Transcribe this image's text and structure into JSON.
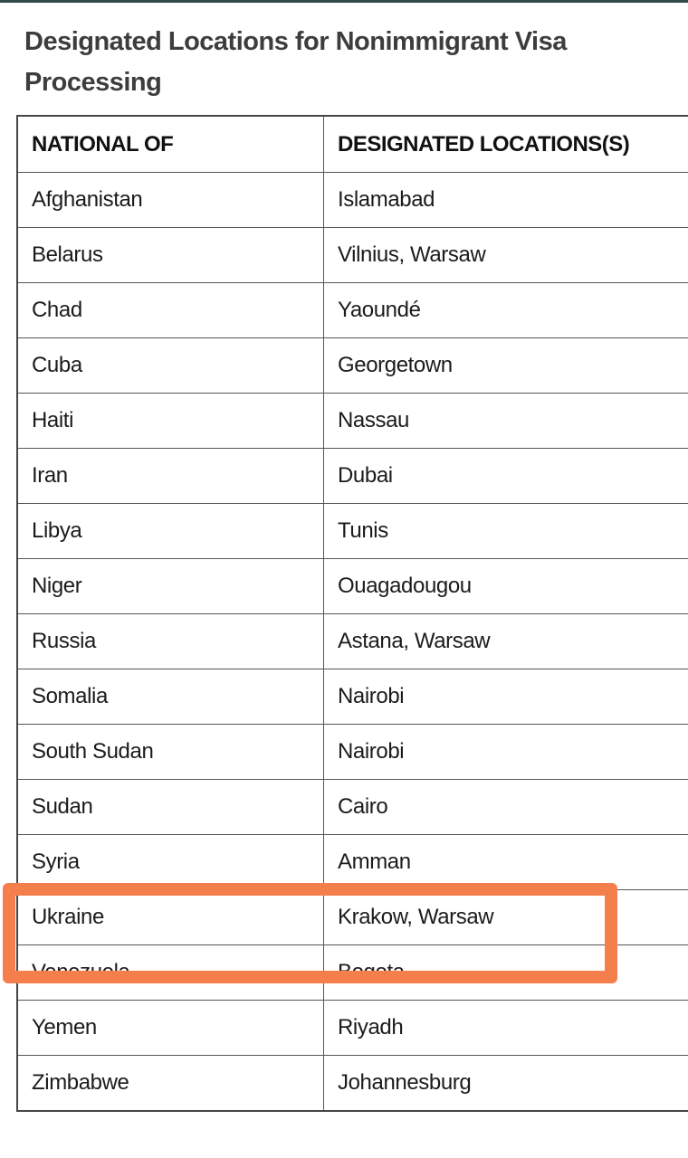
{
  "page": {
    "title": "Designated Locations for Nonimmigrant Visa Processing"
  },
  "table": {
    "headers": {
      "national": "NATIONAL OF",
      "locations": "DESIGNATED LOCATIONS(S)"
    },
    "rows": [
      {
        "national": "Afghanistan",
        "locations": "Islamabad"
      },
      {
        "national": "Belarus",
        "locations": "Vilnius, Warsaw"
      },
      {
        "national": "Chad",
        "locations": "Yaoundé"
      },
      {
        "national": "Cuba",
        "locations": "Georgetown"
      },
      {
        "national": "Haiti",
        "locations": "Nassau"
      },
      {
        "national": "Iran",
        "locations": "Dubai"
      },
      {
        "national": "Libya",
        "locations": "Tunis"
      },
      {
        "national": "Niger",
        "locations": "Ouagadougou"
      },
      {
        "national": "Russia",
        "locations": "Astana, Warsaw"
      },
      {
        "national": "Somalia",
        "locations": "Nairobi"
      },
      {
        "national": "South Sudan",
        "locations": "Nairobi"
      },
      {
        "national": "Sudan",
        "locations": "Cairo"
      },
      {
        "national": "Syria",
        "locations": "Amman"
      },
      {
        "national": "Ukraine",
        "locations": "Krakow, Warsaw"
      },
      {
        "national": "Venezuela",
        "locations": "Bogota"
      },
      {
        "national": "Yemen",
        "locations": "Riyadh"
      },
      {
        "national": "Zimbabwe",
        "locations": "Johannesburg"
      }
    ]
  },
  "highlight": {
    "highlighted_country": "Ukraine",
    "color": "#f57e4d"
  },
  "colors": {
    "top_bar": "#2e4b4a",
    "title_text": "#3d3d3d",
    "body_text": "#1b1b1b",
    "table_border": "#565656"
  }
}
